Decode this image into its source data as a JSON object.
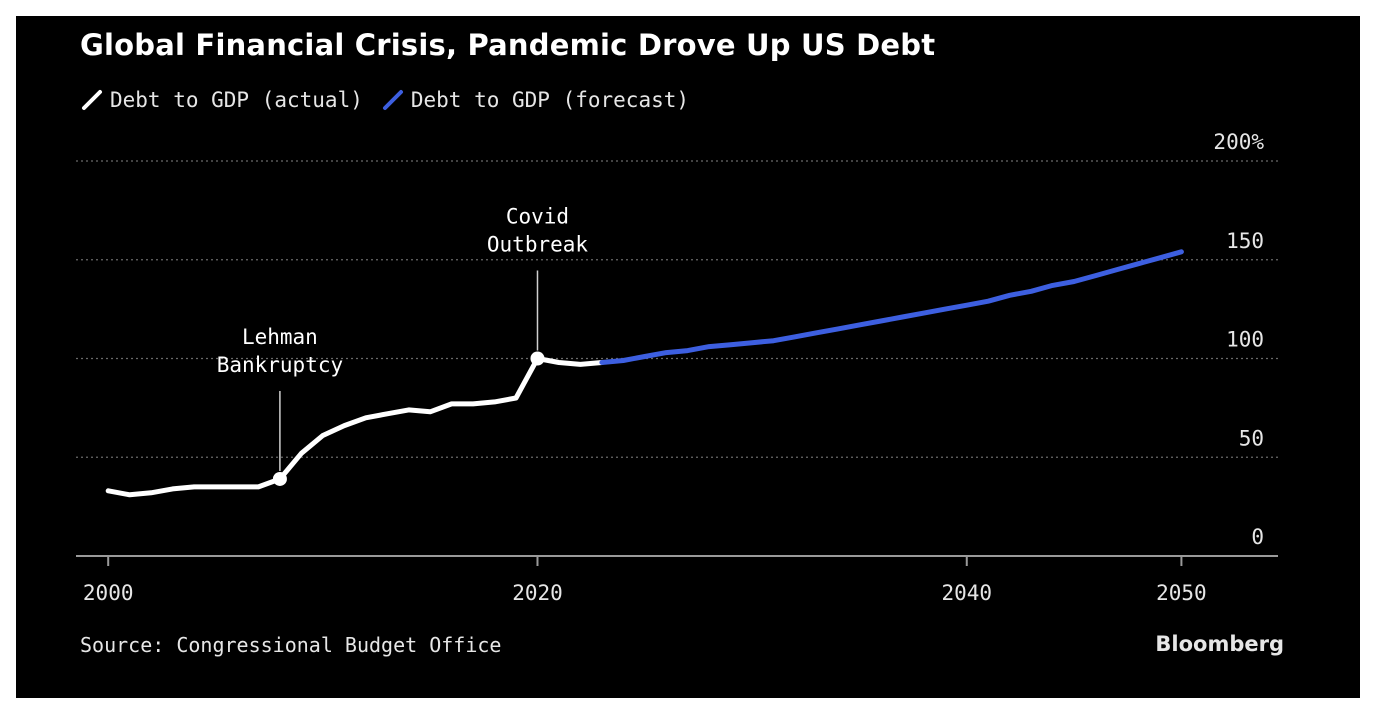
{
  "header": {
    "title": "Global Financial Crisis, Pandemic Drove Up US Debt"
  },
  "legend": [
    {
      "label": "Debt to GDP (actual)",
      "color": "#ffffff",
      "icon": "slash-line-icon"
    },
    {
      "label": "Debt to GDP (forecast)",
      "color": "#3d5fe0",
      "icon": "slash-line-icon"
    }
  ],
  "footer": {
    "source": "Source: Congressional Budget Office",
    "brand": "Bloomberg"
  },
  "chart_data": {
    "type": "line",
    "title": "Global Financial Crisis, Pandemic Drove Up US Debt",
    "xlabel": "",
    "ylabel": "",
    "xlim": [
      1998.5,
      2054.5
    ],
    "ylim": [
      0,
      200
    ],
    "y_ticks": [
      0,
      50,
      100,
      150,
      200
    ],
    "y_tick_labels": [
      "0",
      "50",
      "100",
      "150",
      "200%"
    ],
    "x_ticks": [
      2000,
      2020,
      2040,
      2050
    ],
    "x_tick_labels": [
      "2000",
      "2020",
      "2040",
      "2050"
    ],
    "grid": true,
    "legend_position": "top-left",
    "series": [
      {
        "name": "Debt to GDP (actual)",
        "color": "#ffffff",
        "x": [
          2000,
          2001,
          2002,
          2003,
          2004,
          2005,
          2006,
          2007,
          2008,
          2009,
          2010,
          2011,
          2012,
          2013,
          2014,
          2015,
          2016,
          2017,
          2018,
          2019,
          2020,
          2021,
          2022,
          2023
        ],
        "y": [
          33,
          31,
          32,
          34,
          35,
          35,
          35,
          35,
          39,
          52,
          61,
          66,
          70,
          72,
          74,
          73,
          77,
          77,
          78,
          80,
          100,
          98,
          97,
          98
        ]
      },
      {
        "name": "Debt to GDP (forecast)",
        "color": "#3d5fe0",
        "x": [
          2023,
          2024,
          2025,
          2026,
          2027,
          2028,
          2029,
          2030,
          2031,
          2032,
          2033,
          2034,
          2035,
          2036,
          2037,
          2038,
          2039,
          2040,
          2041,
          2042,
          2043,
          2044,
          2045,
          2046,
          2047,
          2048,
          2049,
          2050
        ],
        "y": [
          98,
          99,
          101,
          103,
          104,
          106,
          107,
          108,
          109,
          111,
          113,
          115,
          117,
          119,
          121,
          123,
          125,
          127,
          129,
          132,
          134,
          137,
          139,
          142,
          145,
          148,
          151,
          154
        ]
      }
    ],
    "annotations": [
      {
        "lines": [
          "Lehman",
          "Bankruptcy"
        ],
        "x": 2008,
        "y": 39
      },
      {
        "lines": [
          "Covid",
          "Outbreak"
        ],
        "x": 2020,
        "y": 100
      }
    ]
  }
}
